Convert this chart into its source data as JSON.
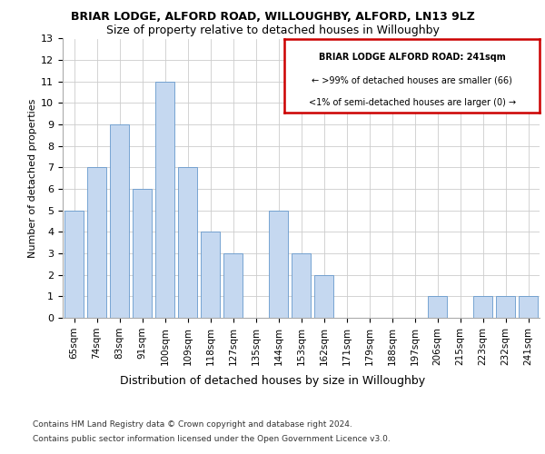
{
  "title1": "BRIAR LODGE, ALFORD ROAD, WILLOUGHBY, ALFORD, LN13 9LZ",
  "title2": "Size of property relative to detached houses in Willoughby",
  "xlabel": "Distribution of detached houses by size in Willoughby",
  "ylabel": "Number of detached properties",
  "categories": [
    "65sqm",
    "74sqm",
    "83sqm",
    "91sqm",
    "100sqm",
    "109sqm",
    "118sqm",
    "127sqm",
    "135sqm",
    "144sqm",
    "153sqm",
    "162sqm",
    "171sqm",
    "179sqm",
    "188sqm",
    "197sqm",
    "206sqm",
    "215sqm",
    "223sqm",
    "232sqm",
    "241sqm"
  ],
  "values": [
    5,
    7,
    9,
    6,
    11,
    7,
    4,
    3,
    0,
    5,
    3,
    2,
    0,
    0,
    0,
    0,
    1,
    0,
    1,
    1,
    1
  ],
  "bar_color": "#c5d8f0",
  "bar_edge_color": "#6699cc",
  "box_color": "#cc0000",
  "box_text_line1": "BRIAR LODGE ALFORD ROAD: 241sqm",
  "box_text_line2": "← >99% of detached houses are smaller (66)",
  "box_text_line3": "<1% of semi-detached houses are larger (0) →",
  "ylim": [
    0,
    13
  ],
  "yticks": [
    0,
    1,
    2,
    3,
    4,
    5,
    6,
    7,
    8,
    9,
    10,
    11,
    12,
    13
  ],
  "footer1": "Contains HM Land Registry data © Crown copyright and database right 2024.",
  "footer2": "Contains public sector information licensed under the Open Government Licence v3.0.",
  "background_color": "#ffffff",
  "grid_color": "#cccccc",
  "title1_fontsize": 9,
  "title2_fontsize": 9,
  "ylabel_fontsize": 8,
  "xlabel_fontsize": 9,
  "tick_fontsize": 8,
  "footer_fontsize": 6.5
}
